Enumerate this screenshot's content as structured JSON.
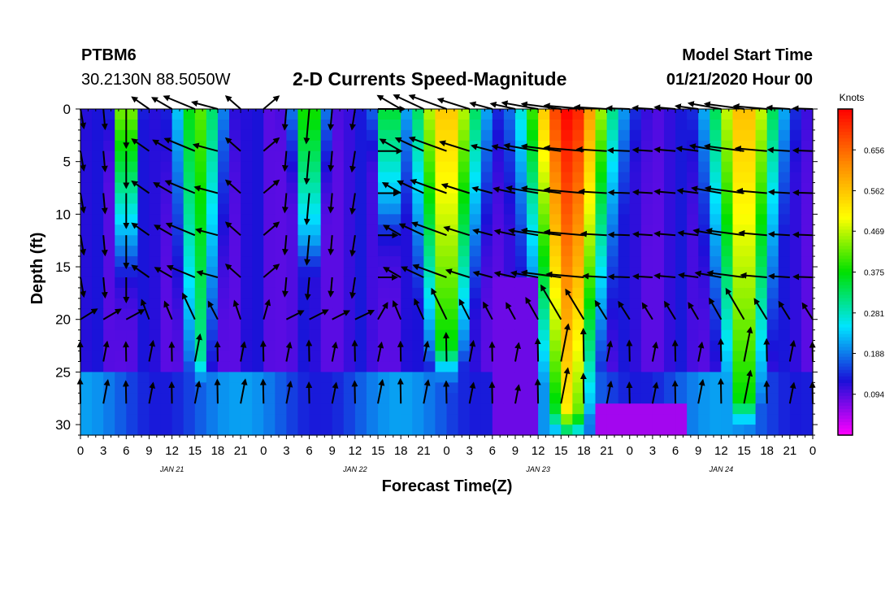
{
  "header": {
    "station": "PTBM6",
    "coords": "30.2130N 88.5050W",
    "title": "2-D Currents Speed-Magnitude",
    "model_start_label": "Model Start Time",
    "model_start_value": "01/21/2020 Hour 00"
  },
  "chart_data": {
    "type": "heatmap",
    "title": "2-D Currents Speed-Magnitude",
    "xlabel": "Forecast Time(Z)",
    "ylabel": "Depth (ft)",
    "x_range_hours": [
      0,
      96
    ],
    "y_range_ft": [
      0,
      31
    ],
    "y_inverted": true,
    "x_tick_labels": [
      "0",
      "3",
      "6",
      "9",
      "12",
      "15",
      "18",
      "21",
      "0",
      "3",
      "6",
      "9",
      "12",
      "15",
      "18",
      "21",
      "0",
      "3",
      "6",
      "9",
      "12",
      "15",
      "18",
      "21",
      "0",
      "3",
      "6",
      "9",
      "12",
      "15",
      "18",
      "21",
      "0"
    ],
    "y_ticks": [
      0,
      5,
      10,
      15,
      20,
      25,
      30
    ],
    "date_labels": [
      {
        "hour": 12,
        "label": "JAN 21"
      },
      {
        "hour": 36,
        "label": "JAN 22"
      },
      {
        "hour": 60,
        "label": "JAN 23"
      },
      {
        "hour": 84,
        "label": "JAN 24"
      }
    ],
    "colorbar": {
      "unit": "Knots",
      "min": 0.0,
      "max": 0.75,
      "ticks": [
        0.094,
        0.188,
        0.281,
        0.375,
        0.469,
        0.562,
        0.656
      ],
      "colors": [
        "#ff00ff",
        "#1a10d8",
        "#00e5ff",
        "#00e000",
        "#ffff00",
        "#ff8800",
        "#ff0000"
      ]
    },
    "speed_peaks": [
      {
        "hour": 6,
        "speed": 0.44,
        "width": 1.5,
        "bottom": 14
      },
      {
        "hour": 15.5,
        "speed": 0.33,
        "width": 3.0,
        "bottom": 24
      },
      {
        "hour": 30,
        "speed": 0.34,
        "width": 2.0,
        "bottom": 13
      },
      {
        "hour": 40.5,
        "speed": 0.3,
        "width": 2.0,
        "bottom": 10
      },
      {
        "hour": 48,
        "speed": 0.48,
        "width": 4.5,
        "bottom": 23
      },
      {
        "hour": 64,
        "speed": 0.66,
        "width": 5.5,
        "bottom": 29
      },
      {
        "hour": 87,
        "speed": 0.49,
        "width": 4.5,
        "bottom": 28
      }
    ],
    "vectors": {
      "depths_ft": [
        0,
        4,
        8,
        12,
        16,
        20,
        24,
        28
      ],
      "hour_step": 3,
      "note": "direction angles in degrees (0 = right/east, 90 = up/north); lengths in knots",
      "angle_by_hour_deg": [
        [
          0,
          -80
        ],
        [
          6,
          -90
        ],
        [
          9,
          145
        ],
        [
          12,
          150
        ],
        [
          18,
          165
        ],
        [
          22,
          130
        ],
        [
          27,
          -95
        ],
        [
          33,
          -95
        ],
        [
          37,
          -100
        ],
        [
          42,
          150
        ],
        [
          48,
          160
        ],
        [
          54,
          165
        ],
        [
          60,
          170
        ],
        [
          66,
          175
        ],
        [
          72,
          178
        ],
        [
          78,
          175
        ],
        [
          84,
          170
        ],
        [
          90,
          175
        ],
        [
          96,
          178
        ]
      ],
      "bottom_angle_deg": 85
    }
  }
}
